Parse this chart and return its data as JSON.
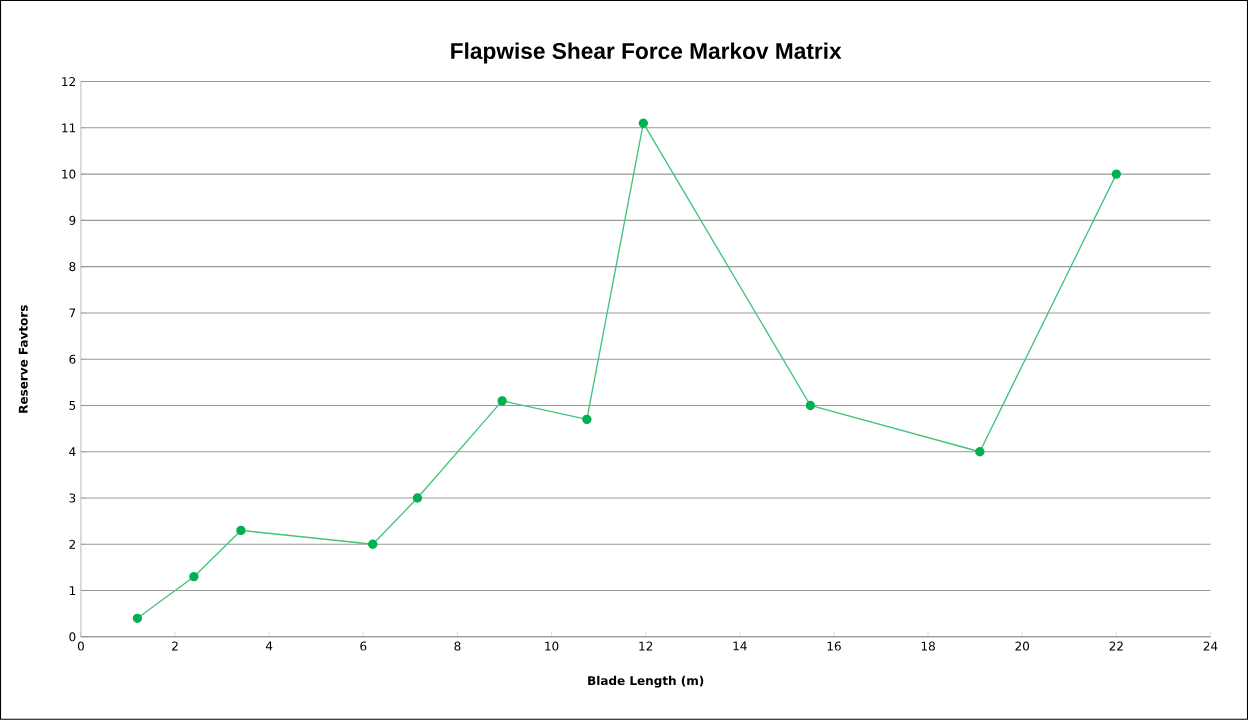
{
  "chart_data": {
    "type": "line",
    "title": "Flapwise Shear Force Markov Matrix",
    "xlabel": "Blade Length (m)",
    "ylabel": "Reserve Favtors",
    "series": [
      {
        "color": "#00b050",
        "x": [
          1.2,
          2.4,
          3.4,
          6.2,
          7.15,
          8.95,
          10.75,
          11.95,
          15.5,
          19.1,
          22
        ],
        "values": [
          0.4,
          1.3,
          2.3,
          2,
          3,
          5.1,
          4.7,
          11.1,
          5,
          4,
          10
        ]
      }
    ],
    "xlim": [
      0,
      24
    ],
    "xticks": [
      0,
      2,
      4,
      6,
      8,
      10,
      12,
      14,
      16,
      18,
      20,
      22,
      24
    ],
    "ylim": [
      0,
      12
    ],
    "yticks": [
      0,
      1,
      2,
      3,
      4,
      5,
      6,
      7,
      8,
      9,
      10,
      11,
      12
    ],
    "grid": "y",
    "marker": "circle",
    "line_style": "solid"
  }
}
